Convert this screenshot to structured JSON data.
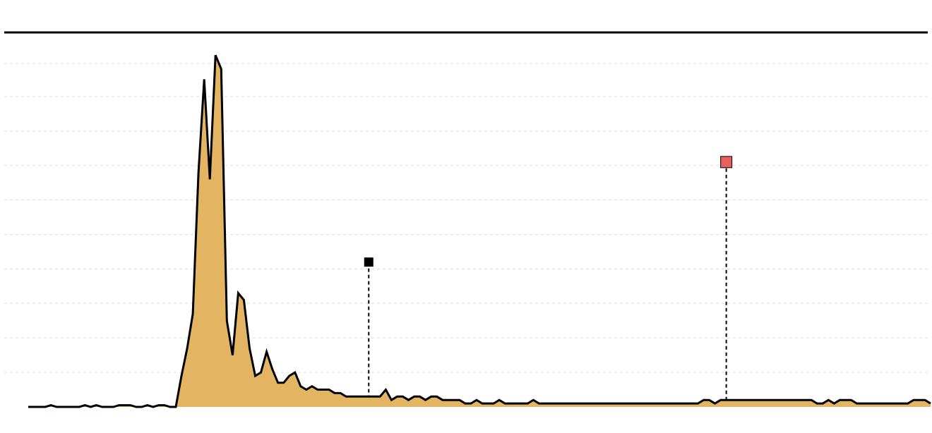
{
  "chart_data": {
    "type": "area",
    "title": "",
    "xlabel": "",
    "ylabel": "",
    "grid": true,
    "fill_color": "#e3b563",
    "line_color": "#000000",
    "grid_color": "#dddddd",
    "ylim": [
      0,
      100
    ],
    "series": [
      {
        "values": [
          0,
          0,
          0,
          0,
          0.5,
          0,
          0,
          0,
          0,
          0,
          0.5,
          0,
          0.5,
          0,
          0,
          0,
          0.5,
          0.5,
          0.5,
          0,
          0,
          0.5,
          0,
          0.5,
          0.5,
          0,
          0,
          9,
          17,
          27,
          68,
          95,
          66,
          102,
          98,
          25,
          15,
          33,
          31,
          17,
          9,
          10,
          16,
          11,
          7,
          7,
          9,
          10,
          6,
          5,
          6,
          5,
          5,
          5,
          4,
          4,
          3,
          3,
          3,
          3,
          3,
          3,
          3,
          5,
          2,
          3,
          3,
          2,
          3,
          3,
          2,
          3,
          3,
          2,
          2,
          2,
          2,
          1,
          1,
          2,
          1,
          1,
          1,
          2,
          1,
          1,
          1,
          1,
          1,
          2,
          1,
          1,
          1,
          1,
          1,
          1,
          1,
          1,
          1,
          1,
          1,
          1,
          1,
          1,
          1,
          1,
          1,
          1,
          1,
          1,
          1,
          1,
          1,
          1,
          1,
          1,
          1,
          1,
          1,
          2,
          2,
          1,
          2,
          2,
          2,
          2,
          2,
          2,
          2,
          2,
          2,
          2,
          2,
          2,
          2,
          2,
          2,
          2,
          2,
          1,
          1,
          2,
          1,
          2,
          2,
          2,
          1,
          1,
          1,
          1,
          1,
          1,
          1,
          1,
          1,
          1,
          2,
          2,
          2,
          1
        ]
      }
    ],
    "markers": [
      {
        "x": 60,
        "value": 42,
        "color": "#000000"
      },
      {
        "x": 123,
        "value": 71,
        "color": "#e8605a"
      }
    ]
  }
}
